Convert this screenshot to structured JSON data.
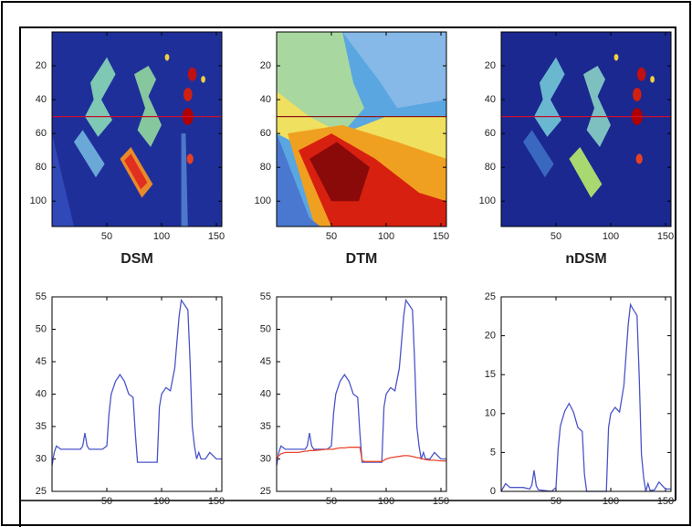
{
  "chart_data": [
    {
      "type": "heatmap",
      "title": "DSM",
      "xlim": [
        0,
        155
      ],
      "ylim": [
        115,
        0
      ],
      "xticks": [
        50,
        100,
        150
      ],
      "yticks": [
        20,
        40,
        60,
        80,
        100
      ],
      "reference_line": {
        "y": 50,
        "color": "#c8102e"
      }
    },
    {
      "type": "heatmap",
      "title": "DTM",
      "xlim": [
        0,
        155
      ],
      "ylim": [
        115,
        0
      ],
      "xticks": [
        50,
        100,
        150
      ],
      "yticks": [
        20,
        40,
        60,
        80,
        100
      ],
      "reference_line": {
        "y": 50,
        "color": "#8b1a1a"
      }
    },
    {
      "type": "heatmap",
      "title": "nDSM",
      "xlim": [
        0,
        155
      ],
      "ylim": [
        115,
        0
      ],
      "xticks": [
        50,
        100,
        150
      ],
      "yticks": [
        20,
        40,
        60,
        80,
        100
      ],
      "reference_line": {
        "y": 50,
        "color": "#c8102e"
      }
    },
    {
      "type": "line",
      "xlim": [
        0,
        155
      ],
      "ylim": [
        25,
        55
      ],
      "xticks": [
        50,
        100,
        150
      ],
      "yticks": [
        25,
        30,
        35,
        40,
        45,
        50,
        55
      ],
      "x": [
        0,
        2,
        4,
        8,
        14,
        20,
        26,
        28,
        30,
        32,
        34,
        40,
        46,
        50,
        52,
        54,
        58,
        62,
        66,
        70,
        74,
        76,
        78,
        80,
        90,
        96,
        98,
        100,
        104,
        108,
        112,
        116,
        118,
        120,
        124,
        126,
        128,
        130,
        132,
        134,
        136,
        140,
        144,
        150,
        155
      ],
      "series": [
        {
          "color": "#4a55c8",
          "values": [
            29,
            31,
            32,
            31.5,
            31.5,
            31.5,
            31.5,
            32,
            34,
            32,
            31.5,
            31.5,
            31.5,
            32,
            37,
            40,
            42,
            43,
            42,
            40,
            39.5,
            34,
            29.5,
            29.5,
            29.5,
            29.5,
            38,
            40,
            41,
            40.5,
            44,
            52,
            54.5,
            54,
            53,
            45,
            35,
            32,
            30,
            31,
            30,
            30,
            31,
            30,
            30
          ]
        }
      ]
    },
    {
      "type": "line",
      "xlim": [
        0,
        155
      ],
      "ylim": [
        25,
        55
      ],
      "xticks": [
        50,
        100,
        150
      ],
      "yticks": [
        25,
        30,
        35,
        40,
        45,
        50,
        55
      ],
      "x": [
        0,
        2,
        4,
        8,
        14,
        20,
        26,
        28,
        30,
        32,
        34,
        40,
        46,
        50,
        52,
        54,
        58,
        62,
        66,
        70,
        74,
        76,
        78,
        80,
        90,
        96,
        98,
        100,
        104,
        108,
        112,
        116,
        118,
        120,
        124,
        126,
        128,
        130,
        132,
        134,
        136,
        140,
        144,
        150,
        155
      ],
      "series": [
        {
          "color": "#4a55c8",
          "values": [
            29,
            31,
            32,
            31.5,
            31.5,
            31.5,
            31.5,
            32,
            34,
            32,
            31.5,
            31.5,
            31.5,
            32,
            37,
            40,
            42,
            43,
            42,
            40,
            39.5,
            34,
            29.5,
            29.5,
            29.5,
            29.5,
            38,
            40,
            41,
            40.5,
            44,
            52,
            54.5,
            54,
            53,
            45,
            35,
            32,
            30,
            31,
            30,
            30,
            31,
            30,
            30
          ]
        },
        {
          "color": "#e8452a",
          "values": [
            30,
            30.5,
            30.8,
            31,
            31,
            31,
            31.2,
            31.2,
            31.3,
            31.3,
            31.3,
            31.4,
            31.5,
            31.5,
            31.5,
            31.6,
            31.7,
            31.7,
            31.8,
            31.8,
            31.8,
            31.8,
            29.8,
            29.6,
            29.6,
            29.6,
            29.8,
            30,
            30.2,
            30.3,
            30.4,
            30.5,
            30.5,
            30.5,
            30.4,
            30.3,
            30.2,
            30.2,
            30,
            30,
            29.9,
            29.8,
            29.8,
            29.7,
            29.7
          ]
        }
      ]
    },
    {
      "type": "line",
      "xlim": [
        0,
        155
      ],
      "ylim": [
        0,
        25
      ],
      "xticks": [
        50,
        100,
        150
      ],
      "yticks": [
        0,
        5,
        10,
        15,
        20,
        25
      ],
      "x": [
        0,
        2,
        4,
        8,
        14,
        20,
        26,
        28,
        30,
        32,
        34,
        40,
        46,
        50,
        52,
        54,
        58,
        62,
        66,
        70,
        74,
        76,
        78,
        80,
        90,
        96,
        98,
        100,
        104,
        108,
        112,
        116,
        118,
        120,
        124,
        126,
        128,
        130,
        132,
        134,
        136,
        140,
        144,
        150,
        155
      ],
      "series": [
        {
          "color": "#4a55c8",
          "values": [
            0,
            0.5,
            1,
            0.5,
            0.5,
            0.5,
            0.3,
            0.8,
            2.7,
            0.7,
            0.2,
            0.1,
            0,
            0.5,
            5.5,
            8.4,
            10.3,
            11.3,
            10.2,
            8.2,
            7.7,
            2.2,
            0,
            0,
            0,
            0,
            8.2,
            10,
            10.8,
            10.2,
            13.6,
            21.5,
            24,
            23.5,
            22.6,
            14.7,
            4.8,
            1.8,
            0,
            1,
            0.1,
            0.2,
            1.2,
            0.3,
            0.3
          ]
        }
      ]
    }
  ]
}
